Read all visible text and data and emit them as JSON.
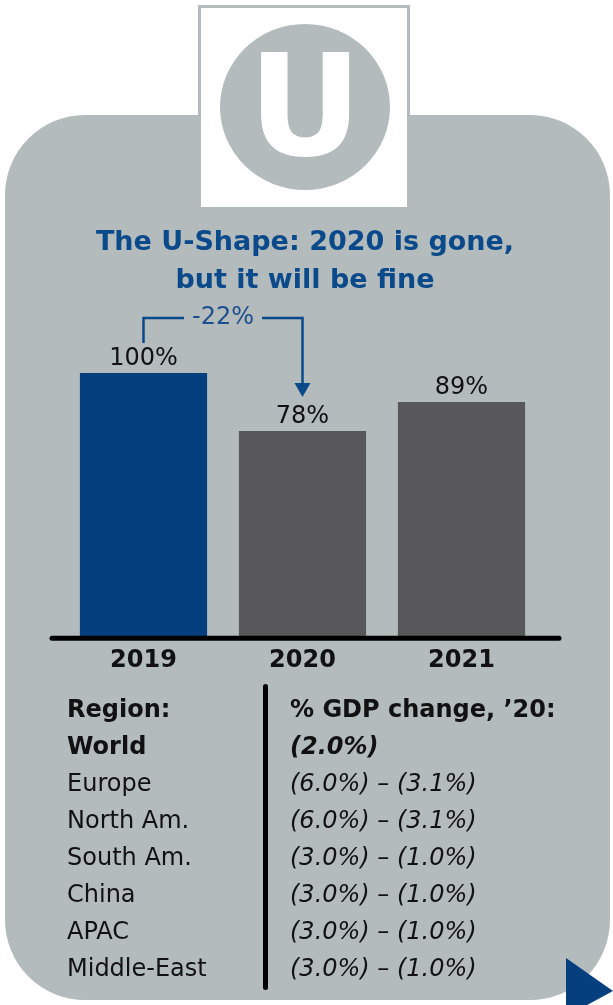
{
  "chart_data": {
    "type": "bar",
    "title": "The U-Shape: 2020 is gone, but it will be fine",
    "categories": [
      "2019",
      "2020",
      "2021"
    ],
    "values": [
      100,
      78,
      89
    ],
    "colors": [
      "#053f7e",
      "#58585a",
      "#58585a"
    ],
    "value_labels": [
      "100%",
      "78%",
      "89%"
    ],
    "tick_labels": "x",
    "annotations": [
      "U",
      "-22%",
      "Region:",
      "% GDP change, ’20:",
      "World",
      "(2.0%)",
      "Europe",
      "(6.0%) – (3.1%)",
      "North Am.",
      "(6.0%) – (3.1%)",
      "South Am.",
      "(3.0%) – (1.0%)",
      "China",
      "(3.0%) – (1.0%)",
      "APAC",
      "(3.0%) – (1.0%)",
      "Middle-East",
      "(3.0%) – (1.0%)"
    ]
  }
}
